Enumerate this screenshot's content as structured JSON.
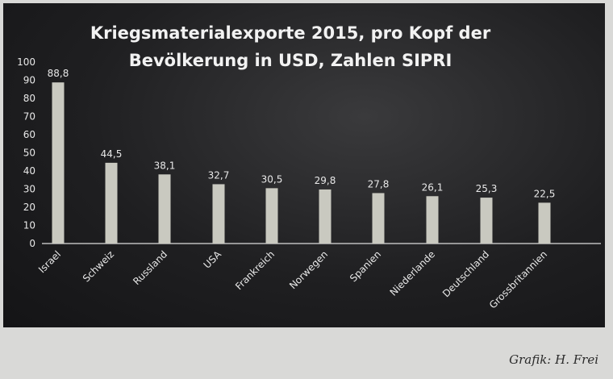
{
  "chart_data": {
    "type": "bar",
    "title_lines": [
      "Kriegsmaterialexporte 2015, pro Kopf der",
      "Bevölkerung in USD, Zahlen SIPRI"
    ],
    "categories": [
      "Israel",
      "Schweiz",
      "Russland",
      "USA",
      "Frankreich",
      "Norwegen",
      "Spanien",
      "Niederlande",
      "Deutschland",
      "Grossbritannien"
    ],
    "values": [
      88.8,
      44.5,
      38.1,
      32.7,
      30.5,
      29.8,
      27.8,
      26.1,
      25.3,
      22.5
    ],
    "value_labels": [
      "88,8",
      "44,5",
      "38,1",
      "32,7",
      "30,5",
      "29,8",
      "27,8",
      "26,1",
      "25,3",
      "22,5"
    ],
    "yticks": [
      "0",
      "10",
      "20",
      "30",
      "40",
      "50",
      "60",
      "70",
      "80",
      "90",
      "100"
    ],
    "ylim": [
      0,
      100
    ],
    "xlabel": "",
    "ylabel": "",
    "grid": false,
    "bar_color": "#c9c9c0"
  },
  "credit": "Grafik: H. Frei"
}
